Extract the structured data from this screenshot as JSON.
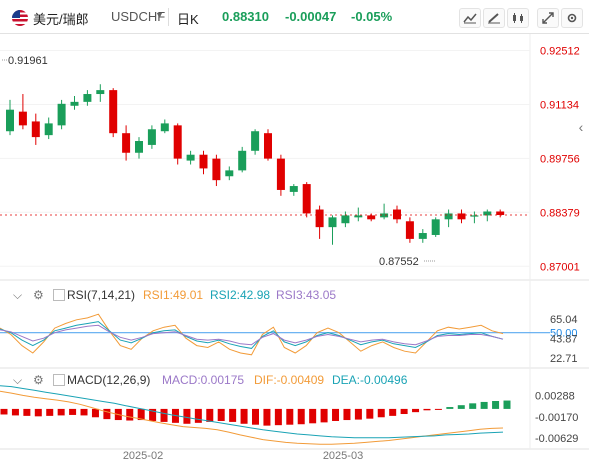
{
  "header": {
    "symbol_name": "美元/瑞郎",
    "symbol_code": "USDCHF",
    "period": "日K",
    "price": "0.88310",
    "change": "-0.00047",
    "change_pct": "-0.05%",
    "colors": {
      "up": "#1a9e5a",
      "down": "#e00000"
    }
  },
  "toolbar": {
    "icons": [
      "chart-style-icon",
      "draw-icon",
      "candle-type-icon",
      "fullscreen-icon",
      "settings-icon"
    ]
  },
  "rsi": {
    "label": "RSI(7,14,21)",
    "rsi1": "RSI1:49.01",
    "rsi2": "RSI2:42.98",
    "rsi3": "RSI3:43.05"
  },
  "macd": {
    "label": "MACD(12,26,9)",
    "macd": "MACD:0.00175",
    "dif": "DIF:-0.00409",
    "dea": "DEA:-0.00496"
  },
  "chart_data": {
    "type": "candlestick",
    "y_axis": {
      "ticks": [
        "0.92512",
        "0.91134",
        "0.89756",
        "0.88379",
        "0.87001"
      ],
      "ylim": [
        0.8665,
        0.9278
      ]
    },
    "annotations": {
      "high": "0.91961",
      "low": "0.87552"
    },
    "x_tick_labels": [
      "2025-02",
      "2025-03"
    ],
    "candles": [
      {
        "o": 0.9045,
        "h": 0.9125,
        "l": 0.9035,
        "c": 0.91
      },
      {
        "o": 0.9095,
        "h": 0.914,
        "l": 0.905,
        "c": 0.906
      },
      {
        "o": 0.907,
        "h": 0.909,
        "l": 0.901,
        "c": 0.903
      },
      {
        "o": 0.9035,
        "h": 0.908,
        "l": 0.9025,
        "c": 0.9065
      },
      {
        "o": 0.906,
        "h": 0.9125,
        "l": 0.905,
        "c": 0.9115
      },
      {
        "o": 0.911,
        "h": 0.9135,
        "l": 0.91,
        "c": 0.912
      },
      {
        "o": 0.912,
        "h": 0.915,
        "l": 0.911,
        "c": 0.914
      },
      {
        "o": 0.914,
        "h": 0.9165,
        "l": 0.912,
        "c": 0.915
      },
      {
        "o": 0.915,
        "h": 0.9155,
        "l": 0.903,
        "c": 0.904
      },
      {
        "o": 0.904,
        "h": 0.906,
        "l": 0.897,
        "c": 0.899
      },
      {
        "o": 0.899,
        "h": 0.903,
        "l": 0.8975,
        "c": 0.902
      },
      {
        "o": 0.901,
        "h": 0.906,
        "l": 0.9,
        "c": 0.905
      },
      {
        "o": 0.9045,
        "h": 0.9075,
        "l": 0.904,
        "c": 0.9065
      },
      {
        "o": 0.906,
        "h": 0.9065,
        "l": 0.896,
        "c": 0.8975
      },
      {
        "o": 0.897,
        "h": 0.8995,
        "l": 0.896,
        "c": 0.8985
      },
      {
        "o": 0.8985,
        "h": 0.8995,
        "l": 0.8935,
        "c": 0.895
      },
      {
        "o": 0.8975,
        "h": 0.8985,
        "l": 0.8905,
        "c": 0.892
      },
      {
        "o": 0.893,
        "h": 0.8955,
        "l": 0.892,
        "c": 0.8945
      },
      {
        "o": 0.8945,
        "h": 0.9005,
        "l": 0.894,
        "c": 0.8995
      },
      {
        "o": 0.8995,
        "h": 0.905,
        "l": 0.8985,
        "c": 0.9045
      },
      {
        "o": 0.904,
        "h": 0.905,
        "l": 0.897,
        "c": 0.8975
      },
      {
        "o": 0.8975,
        "h": 0.8985,
        "l": 0.888,
        "c": 0.8895
      },
      {
        "o": 0.889,
        "h": 0.891,
        "l": 0.888,
        "c": 0.8905
      },
      {
        "o": 0.891,
        "h": 0.8915,
        "l": 0.8825,
        "c": 0.8835
      },
      {
        "o": 0.8845,
        "h": 0.8855,
        "l": 0.877,
        "c": 0.88
      },
      {
        "o": 0.88,
        "h": 0.883,
        "l": 0.8755,
        "c": 0.8825
      },
      {
        "o": 0.881,
        "h": 0.884,
        "l": 0.88,
        "c": 0.883
      },
      {
        "o": 0.8825,
        "h": 0.885,
        "l": 0.8815,
        "c": 0.883
      },
      {
        "o": 0.883,
        "h": 0.8835,
        "l": 0.8815,
        "c": 0.882
      },
      {
        "o": 0.8825,
        "h": 0.886,
        "l": 0.882,
        "c": 0.8835
      },
      {
        "o": 0.8845,
        "h": 0.8855,
        "l": 0.881,
        "c": 0.882
      },
      {
        "o": 0.8815,
        "h": 0.8825,
        "l": 0.876,
        "c": 0.877
      },
      {
        "o": 0.877,
        "h": 0.8795,
        "l": 0.876,
        "c": 0.8785
      },
      {
        "o": 0.878,
        "h": 0.8825,
        "l": 0.8775,
        "c": 0.882
      },
      {
        "o": 0.882,
        "h": 0.8845,
        "l": 0.88,
        "c": 0.8835
      },
      {
        "o": 0.8835,
        "h": 0.8845,
        "l": 0.881,
        "c": 0.882
      },
      {
        "o": 0.883,
        "h": 0.884,
        "l": 0.881,
        "c": 0.883
      },
      {
        "o": 0.883,
        "h": 0.8845,
        "l": 0.8815,
        "c": 0.884
      },
      {
        "o": 0.884,
        "h": 0.8845,
        "l": 0.8825,
        "c": 0.8831
      }
    ],
    "rsi_axis": {
      "ticks": [
        "65.04",
        "50.00",
        "43.87",
        "22.71"
      ],
      "ylim": [
        15,
        80
      ],
      "ref_line": 50
    },
    "rsi_series": [
      {
        "name": "RSI1",
        "color": "#f29b38",
        "values": [
          55,
          48,
          36,
          28,
          40,
          55,
          60,
          64,
          66,
          70,
          52,
          36,
          32,
          44,
          52,
          56,
          58,
          44,
          36,
          34,
          40,
          32,
          28,
          26,
          48,
          56,
          34,
          28,
          36,
          50,
          55,
          50,
          40,
          30,
          36,
          40,
          34,
          30,
          28,
          40,
          52,
          56,
          54,
          56,
          58,
          52,
          49
        ]
      },
      {
        "name": "RSI2",
        "color": "#1aa3b5",
        "values": [
          54,
          50,
          42,
          36,
          42,
          52,
          55,
          58,
          60,
          62,
          52,
          42,
          39,
          44,
          50,
          52,
          53,
          46,
          41,
          39,
          42,
          38,
          35,
          33,
          46,
          52,
          40,
          36,
          40,
          47,
          50,
          47,
          42,
          37,
          40,
          42,
          38,
          36,
          34,
          40,
          47,
          49,
          48,
          49,
          50,
          46,
          43
        ]
      },
      {
        "name": "RSI3",
        "color": "#9b78c8",
        "values": [
          53,
          51,
          46,
          41,
          44,
          50,
          53,
          55,
          57,
          58,
          51,
          45,
          42,
          45,
          49,
          50,
          51,
          47,
          43,
          42,
          43,
          41,
          38,
          37,
          45,
          49,
          42,
          39,
          42,
          46,
          48,
          46,
          43,
          40,
          42,
          43,
          40,
          38,
          37,
          41,
          46,
          47,
          47,
          48,
          48,
          46,
          43
        ]
      }
    ],
    "macd_axis": {
      "ticks": [
        "0.00288",
        "-0.00170",
        "-0.00629"
      ],
      "ylim": [
        -0.0082,
        0.0045
      ]
    },
    "macd_hist": [
      -0.0012,
      -0.0014,
      -0.0015,
      -0.0016,
      -0.0015,
      -0.0014,
      -0.0013,
      -0.0014,
      -0.0018,
      -0.0022,
      -0.0024,
      -0.0025,
      -0.0024,
      -0.0026,
      -0.0028,
      -0.003,
      -0.0032,
      -0.003,
      -0.0028,
      -0.0026,
      -0.0028,
      -0.0032,
      -0.0034,
      -0.0036,
      -0.0035,
      -0.0034,
      -0.0033,
      -0.0031,
      -0.0029,
      -0.0026,
      -0.0024,
      -0.0023,
      -0.0021,
      -0.0018,
      -0.0015,
      -0.0011,
      -0.0007,
      -0.0003,
      -0.0001,
      0.0004,
      0.0008,
      0.0012,
      0.0015,
      0.0017,
      0.0018
    ],
    "macd_dif": [
      0.0038,
      0.0034,
      0.0029,
      0.0025,
      0.0022,
      0.0019,
      0.0015,
      0.001,
      0.0003,
      -0.0004,
      -0.001,
      -0.0016,
      -0.002,
      -0.0025,
      -0.003,
      -0.0034,
      -0.0038,
      -0.004,
      -0.0042,
      -0.0045,
      -0.005,
      -0.0056,
      -0.0061,
      -0.0066,
      -0.0069,
      -0.0072,
      -0.0074,
      -0.0075,
      -0.0076,
      -0.0076,
      -0.0075,
      -0.0074,
      -0.0072,
      -0.007,
      -0.0068,
      -0.0065,
      -0.0062,
      -0.0059,
      -0.0056,
      -0.0053,
      -0.005,
      -0.0047,
      -0.0044,
      -0.0042,
      -0.0041
    ],
    "macd_dea": [
      0.005,
      0.0048,
      0.0044,
      0.004,
      0.0036,
      0.0032,
      0.0028,
      0.0024,
      0.002,
      0.0016,
      0.0012,
      0.0007,
      0.0002,
      -0.0003,
      -0.0008,
      -0.0013,
      -0.0017,
      -0.0021,
      -0.0025,
      -0.0029,
      -0.0033,
      -0.0037,
      -0.0041,
      -0.0045,
      -0.0048,
      -0.0051,
      -0.0054,
      -0.0056,
      -0.0058,
      -0.006,
      -0.0061,
      -0.0062,
      -0.0062,
      -0.0062,
      -0.0062,
      -0.0061,
      -0.006,
      -0.0059,
      -0.0058,
      -0.0056,
      -0.0055,
      -0.0054,
      -0.0052,
      -0.0051,
      -0.005
    ]
  }
}
